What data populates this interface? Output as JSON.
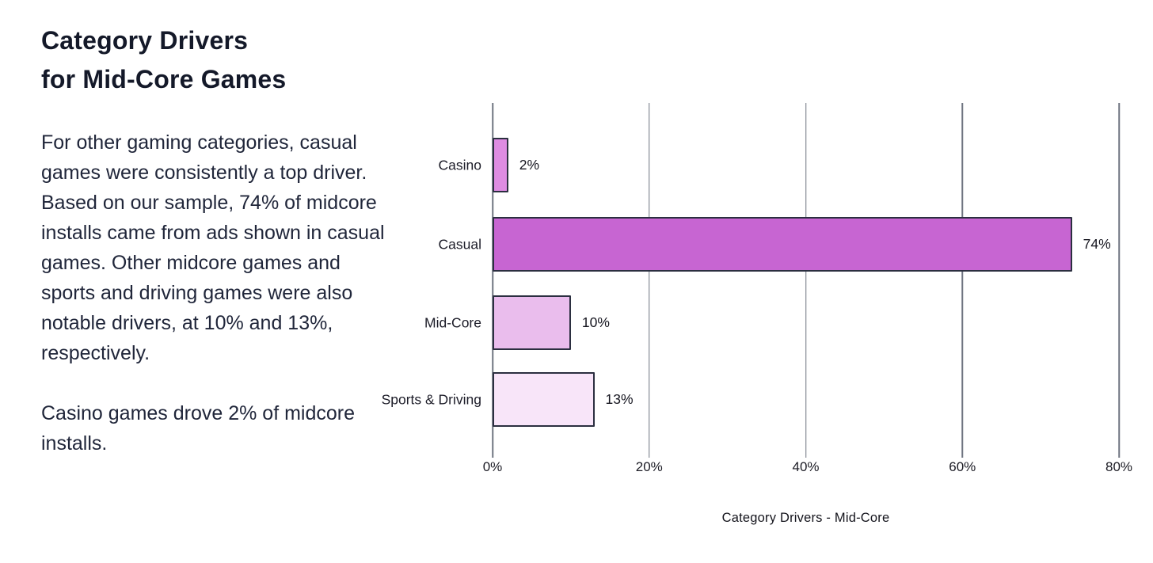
{
  "left_panel": {
    "title_line1": "Category Drivers",
    "title_line2": "for Mid-Core Games",
    "paragraph1": "For other gaming categories, casual games were consistently a top driver. Based on our sample, 74% of midcore installs came from ads shown in casual games. Other midcore games and sports and driving games were also notable drivers, at 10% and 13%, respectively.",
    "paragraph2": "Casino games drove 2% of midcore installs."
  },
  "chart_data": {
    "type": "bar",
    "orientation": "horizontal",
    "title": "Category Drivers - Mid-Core",
    "categories": [
      "Casino",
      "Casual",
      "Mid-Core",
      "Sports & Driving"
    ],
    "values": [
      2,
      74,
      10,
      13
    ],
    "value_labels": [
      "2%",
      "74%",
      "10%",
      "13%"
    ],
    "x_ticks": [
      "0%",
      "20%",
      "40%",
      "60%",
      "80%"
    ],
    "x_tick_values": [
      0,
      20,
      40,
      60,
      80
    ],
    "xlim": [
      0,
      80
    ],
    "xlabel": "",
    "ylabel": "",
    "grid": "vertical",
    "legend": "none",
    "bar_colors": [
      "#de8ce2",
      "#c765d2",
      "#eabded",
      "#f8e5f9"
    ],
    "bar_border_color": "#2b2f40",
    "gridline_color": "#6f7480",
    "background_color": "#ffffff",
    "text_color": "#1b2133"
  }
}
